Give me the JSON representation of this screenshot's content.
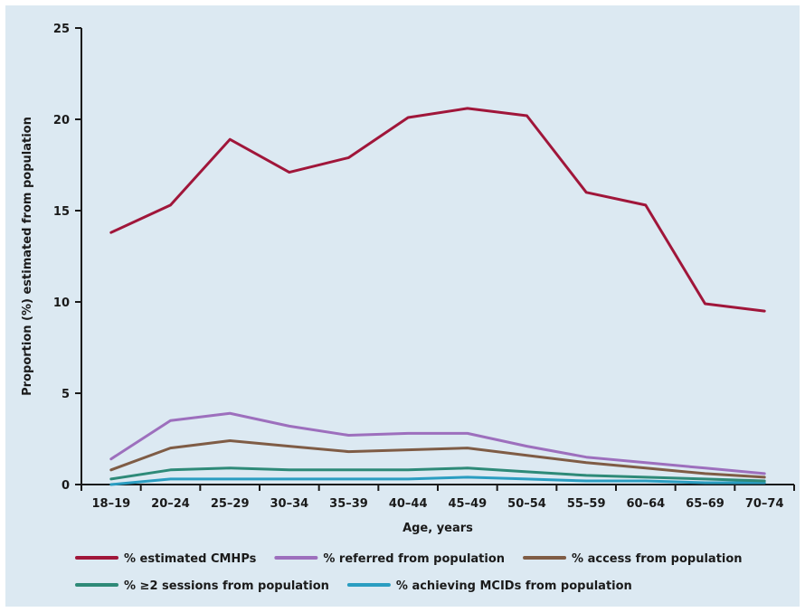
{
  "chart_data": {
    "type": "line",
    "categories": [
      "18–19",
      "20–24",
      "25–29",
      "30–34",
      "35–39",
      "40–44",
      "45–49",
      "50–54",
      "55–59",
      "60–64",
      "65–69",
      "70–74"
    ],
    "xlabel": "Age, years",
    "ylabel": "Proportion (%) estimated from population",
    "ylim": [
      0,
      25
    ],
    "yticks": [
      0,
      5,
      10,
      15,
      20,
      25
    ],
    "grid": false,
    "legend_position": "bottom",
    "series": [
      {
        "name": "% estimated CMHPs",
        "color": "#a0163a",
        "values": [
          13.8,
          15.3,
          18.9,
          17.1,
          17.9,
          20.1,
          20.6,
          20.2,
          16.0,
          15.3,
          9.9,
          9.5
        ]
      },
      {
        "name": "% referred from population",
        "color": "#9d6fbd",
        "values": [
          1.4,
          3.5,
          3.9,
          3.2,
          2.7,
          2.8,
          2.8,
          2.1,
          1.5,
          1.2,
          0.9,
          0.6
        ]
      },
      {
        "name": "% access from population",
        "color": "#7f5c45",
        "values": [
          0.8,
          2.0,
          2.4,
          2.1,
          1.8,
          1.9,
          2.0,
          1.6,
          1.2,
          0.9,
          0.6,
          0.4
        ]
      },
      {
        "name": "% ≥2 sessions from population",
        "color": "#2e8a78",
        "values": [
          0.3,
          0.8,
          0.9,
          0.8,
          0.8,
          0.8,
          0.9,
          0.7,
          0.5,
          0.4,
          0.3,
          0.2
        ]
      },
      {
        "name": "% achieving MCIDs from population",
        "color": "#2a9dc1",
        "values": [
          0.0,
          0.3,
          0.3,
          0.3,
          0.3,
          0.3,
          0.4,
          0.3,
          0.2,
          0.2,
          0.1,
          0.1
        ]
      }
    ]
  }
}
